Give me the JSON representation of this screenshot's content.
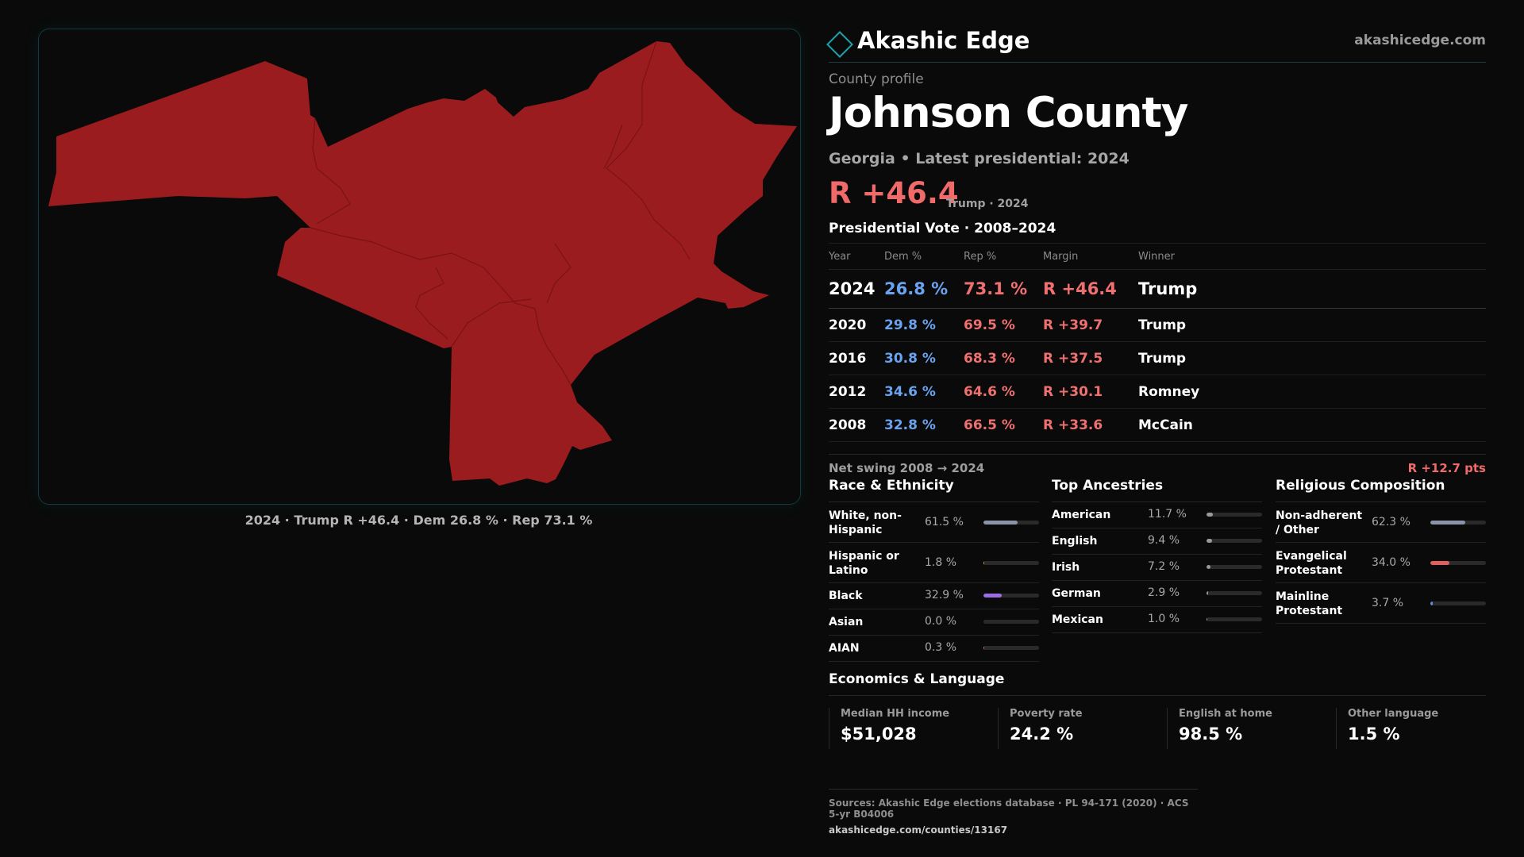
{
  "map": {
    "fill_color": "#9b1c1f",
    "caption": "2024 · Trump R +46.4 · Dem 26.8 % · Rep 73.1 %"
  },
  "brand": {
    "name": "Akashic Edge",
    "site": "akashicedge.com"
  },
  "profile": {
    "label": "County profile",
    "county": "Johnson County",
    "subtitle": "Georgia • Latest presidential: 2024",
    "margin": "R +46.4",
    "margin_note": "Trump · 2024"
  },
  "vote_table": {
    "title": "Presidential Vote · 2008–2024",
    "headers": {
      "year": "Year",
      "dem": "Dem %",
      "rep": "Rep %",
      "margin": "Margin",
      "winner": "Winner"
    },
    "rows": [
      {
        "year": "2024",
        "dem": "26.8 %",
        "rep": "73.1 %",
        "margin": "R +46.4",
        "winner": "Trump"
      },
      {
        "year": "2020",
        "dem": "29.8 %",
        "rep": "69.5 %",
        "margin": "R +39.7",
        "winner": "Trump"
      },
      {
        "year": "2016",
        "dem": "30.8 %",
        "rep": "68.3 %",
        "margin": "R +37.5",
        "winner": "Trump"
      },
      {
        "year": "2012",
        "dem": "34.6 %",
        "rep": "64.6 %",
        "margin": "R +30.1",
        "winner": "Romney"
      },
      {
        "year": "2008",
        "dem": "32.8 %",
        "rep": "66.5 %",
        "margin": "R +33.6",
        "winner": "McCain"
      }
    ]
  },
  "swing": {
    "label": "Net swing 2008 → 2024",
    "value": "R +12.7 pts"
  },
  "race": {
    "title": "Race & Ethnicity",
    "items": [
      {
        "label": "White, non-Hispanic",
        "pct": "61.5 %",
        "value": 61.5,
        "color": "#8a93a8"
      },
      {
        "label": "Hispanic or Latino",
        "pct": "1.8 %",
        "value": 1.8,
        "color": "#e0a030"
      },
      {
        "label": "Black",
        "pct": "32.9 %",
        "value": 32.9,
        "color": "#9a6ee0"
      },
      {
        "label": "Asian",
        "pct": "0.0 %",
        "value": 0.0,
        "color": "#50b0a0"
      },
      {
        "label": "AIAN",
        "pct": "0.3 %",
        "value": 0.3,
        "color": "#e07040"
      }
    ]
  },
  "ancestry": {
    "title": "Top Ancestries",
    "items": [
      {
        "label": "American",
        "pct": "11.7 %",
        "value": 11.7,
        "color": "#9a9a9a"
      },
      {
        "label": "English",
        "pct": "9.4 %",
        "value": 9.4,
        "color": "#9a9a9a"
      },
      {
        "label": "Irish",
        "pct": "7.2 %",
        "value": 7.2,
        "color": "#9a9a9a"
      },
      {
        "label": "German",
        "pct": "2.9 %",
        "value": 2.9,
        "color": "#9a9a9a"
      },
      {
        "label": "Mexican",
        "pct": "1.0 %",
        "value": 1.0,
        "color": "#9a9a9a"
      }
    ]
  },
  "religion": {
    "title": "Religious Composition",
    "items": [
      {
        "label": "Non-adherent / Other",
        "pct": "62.3 %",
        "value": 62.3,
        "color": "#8a93a8"
      },
      {
        "label": "Evangelical Protestant",
        "pct": "34.0 %",
        "value": 34.0,
        "color": "#e06060"
      },
      {
        "label": "Mainline Protestant",
        "pct": "3.7 %",
        "value": 3.7,
        "color": "#5a90e0"
      }
    ]
  },
  "economics": {
    "title": "Economics & Language",
    "items": [
      {
        "label": "Median HH income",
        "value": "$51,028"
      },
      {
        "label": "Poverty rate",
        "value": "24.2 %"
      },
      {
        "label": "English at home",
        "value": "98.5 %"
      },
      {
        "label": "Other language",
        "value": "1.5 %"
      }
    ]
  },
  "footer": {
    "sources": "Sources: Akashic Edge elections database · PL 94-171 (2020) · ACS 5-yr B04006",
    "url": "akashicedge.com/counties/13167"
  }
}
